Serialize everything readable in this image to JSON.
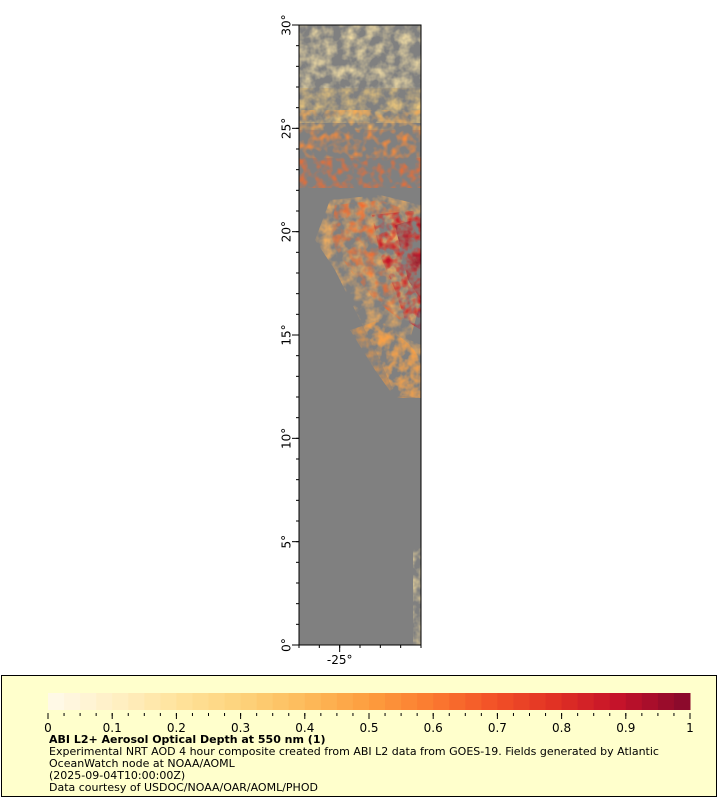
{
  "map": {
    "lat_axis": {
      "ticks": [
        {
          "value": 30,
          "label": "30°"
        },
        {
          "value": 25,
          "label": "25°"
        },
        {
          "value": 20,
          "label": "20°"
        },
        {
          "value": 15,
          "label": "15°"
        },
        {
          "value": 10,
          "label": "10°"
        },
        {
          "value": 5,
          "label": "5°"
        },
        {
          "value": 0,
          "label": "0°"
        }
      ],
      "range": [
        0,
        30
      ]
    },
    "lon_axis": {
      "ticks": [
        {
          "value": -25,
          "label": "-25°"
        }
      ]
    },
    "land_color": "#808080",
    "missing_color": "#ffffff"
  },
  "legend": {
    "colorbar": {
      "min": 0,
      "max": 1,
      "tick_labels": [
        "0",
        "0.1",
        "0.2",
        "0.3",
        "0.4",
        "0.5",
        "0.6",
        "0.7",
        "0.8",
        "0.9",
        "1"
      ],
      "colors": [
        "#fff9e6",
        "#ffefc2",
        "#ffe29a",
        "#fdd27a",
        "#fdba5a",
        "#fd9d3e",
        "#fb7a30",
        "#f25127",
        "#e03024",
        "#c4122a",
        "#8c0a2c"
      ]
    },
    "title": "ABI L2+ Aerosol Optical Depth at 550 nm (1)",
    "line1": "Experimental NRT AOD 4 hour composite created from ABI L2 data from GOES-19. Fields generated by Atlantic OceanWatch node at NOAA/AOML",
    "line2": "(2025-09-04T10:00:00Z)",
    "line3": "Data courtesy of USDOC/NOAA/OAR/AOML/PHOD"
  }
}
